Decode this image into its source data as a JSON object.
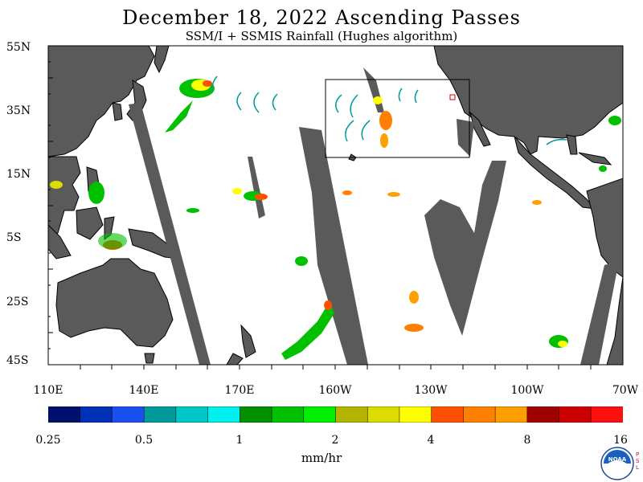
{
  "title": "December 18, 2022  Ascending Passes",
  "subtitle": "SSM/I + SSMIS Rainfall (Hughes algorithm)",
  "latitude_labels": [
    "55N",
    "35N",
    "15N",
    "5S",
    "25S",
    "45S"
  ],
  "longitude_labels": [
    "110E",
    "140E",
    "170E",
    "160W",
    "130W",
    "100W",
    "70W"
  ],
  "colorbar": {
    "colors": [
      "#00106e",
      "#0030b4",
      "#1b50f0",
      "#009a9a",
      "#00c8c8",
      "#00f0f0",
      "#009000",
      "#00c000",
      "#00f000",
      "#b4b400",
      "#dcdc00",
      "#ffff00",
      "#ff5000",
      "#ff8000",
      "#ffa000",
      "#a00000",
      "#cc0000",
      "#ff1010"
    ],
    "tick_labels": [
      "0.25",
      "0.5",
      "1",
      "2",
      "4",
      "8",
      "16"
    ],
    "unit": "mm/hr"
  },
  "colors": {
    "land": "#5a5a5a",
    "no_data_swath": "#5a5a5a",
    "ocean": "#ffffff",
    "frame": "#000000",
    "box": "#000000"
  },
  "logo": {
    "name": "noaa-logo",
    "text": "NOAA",
    "side_text": "PSL"
  }
}
